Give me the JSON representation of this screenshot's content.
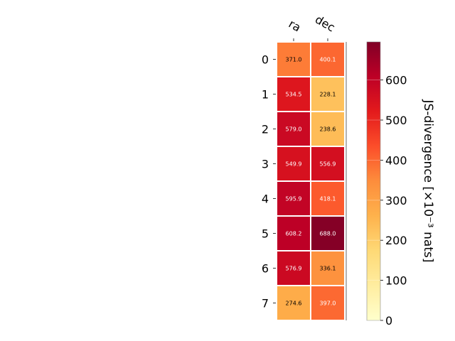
{
  "chart_data": {
    "type": "heatmap",
    "columns": [
      "ra",
      "dec"
    ],
    "rows": [
      "0",
      "1",
      "2",
      "3",
      "4",
      "5",
      "6",
      "7"
    ],
    "values": [
      [
        371.0,
        400.1
      ],
      [
        534.5,
        228.1
      ],
      [
        579.0,
        238.6
      ],
      [
        549.9,
        556.9
      ],
      [
        595.9,
        418.1
      ],
      [
        608.2,
        688.0
      ],
      [
        576.9,
        336.1
      ],
      [
        274.6,
        397.0
      ]
    ],
    "cell_labels": [
      [
        "371.0",
        "400.1"
      ],
      [
        "534.5",
        "228.1"
      ],
      [
        "579.0",
        "238.6"
      ],
      [
        "549.9",
        "556.9"
      ],
      [
        "595.9",
        "418.1"
      ],
      [
        "608.2",
        "688.0"
      ],
      [
        "576.9",
        "336.1"
      ],
      [
        "274.6",
        "397.0"
      ]
    ],
    "colorbar": {
      "label": "JS-divergence [×10⁻³ nats]",
      "ticks": [
        0,
        100,
        200,
        300,
        400,
        500,
        600
      ],
      "range": [
        0,
        695
      ],
      "colormap": "YlOrRd"
    },
    "grid": false
  }
}
